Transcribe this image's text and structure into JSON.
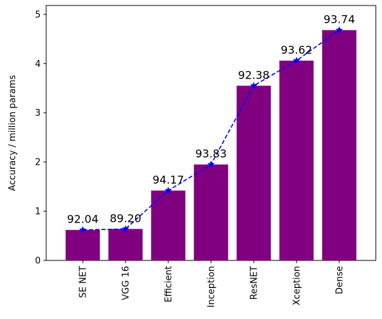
{
  "chart_data": {
    "type": "bar",
    "title": "",
    "xlabel": "",
    "ylabel": "Accuracy / million params",
    "categories": [
      "SE NET",
      "VGG 16",
      "Efficient",
      "Inception",
      "ResNET",
      "Xception",
      "Dense"
    ],
    "values": [
      0.62,
      0.64,
      1.42,
      1.95,
      3.55,
      4.06,
      4.68
    ],
    "data_labels": [
      "92.04",
      "89.20",
      "94.17",
      "93.83",
      "92.38",
      "93.62",
      "93.74"
    ],
    "ylim": [
      0,
      5.18
    ],
    "yticks": [
      0,
      1,
      2,
      3,
      4,
      5
    ],
    "grid": false,
    "legend": "none",
    "bar_color": "#800080",
    "line": {
      "style": "dashed",
      "marker": "star",
      "color": "#0000ff",
      "values": [
        0.62,
        0.64,
        1.42,
        1.95,
        3.55,
        4.06,
        4.68
      ]
    }
  }
}
